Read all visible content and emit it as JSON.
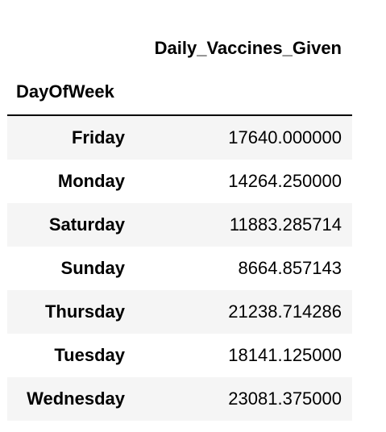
{
  "table": {
    "column_header": "Daily_Vaccines_Given",
    "index_header": "DayOfWeek",
    "rows": [
      {
        "day": "Friday",
        "value": "17640.000000"
      },
      {
        "day": "Monday",
        "value": "14264.250000"
      },
      {
        "day": "Saturday",
        "value": "11883.285714"
      },
      {
        "day": "Sunday",
        "value": "8664.857143"
      },
      {
        "day": "Thursday",
        "value": "21238.714286"
      },
      {
        "day": "Tuesday",
        "value": "18141.125000"
      },
      {
        "day": "Wednesday",
        "value": "23081.375000"
      }
    ]
  }
}
